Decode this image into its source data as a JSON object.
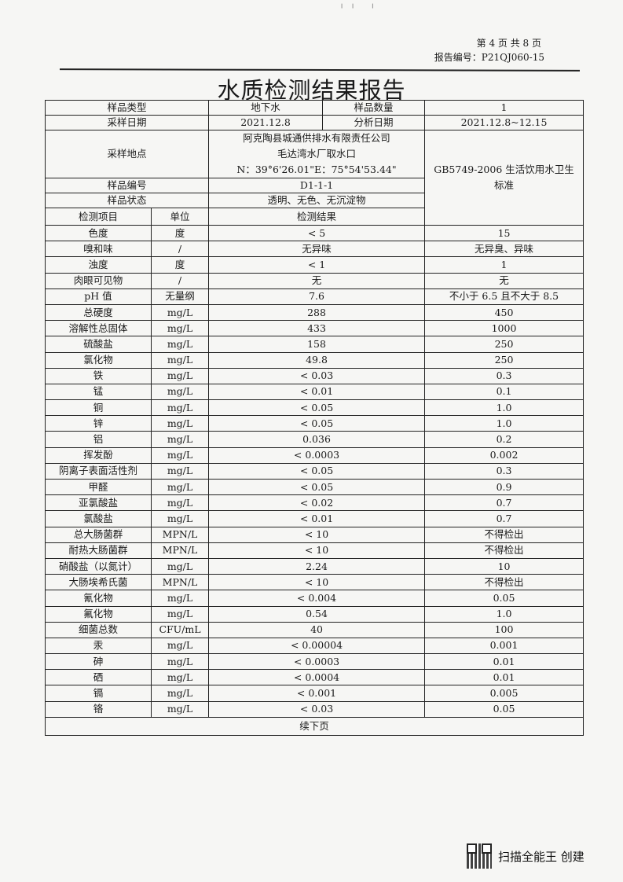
{
  "header": {
    "page_indicator": "第 4 页 共 8 页",
    "report_number": "报告编号：P21QJ060-15",
    "title": "水质检测结果报告"
  },
  "info": {
    "sample_type_label": "样品类型",
    "sample_type": "地下水",
    "sample_count_label": "样品数量",
    "sample_count": "1",
    "sampling_date_label": "采样日期",
    "sampling_date": "2021.12.8",
    "analysis_date_label": "分析日期",
    "analysis_date": "2021.12.8~12.15",
    "location_label": "采样地点",
    "location_lines": [
      "阿克陶县城通供排水有限责任公司",
      "毛达湾水厂取水口",
      "N：39°6'26.01\"E：75°54'53.44\""
    ],
    "sample_id_label": "样品编号",
    "sample_id": "D1-1-1",
    "sample_state_label": "样品状态",
    "sample_state": "透明、无色、无沉淀物",
    "standard": "GB5749-2006 生活饮用水卫生标准"
  },
  "columns": {
    "item": "检测项目",
    "unit": "单位",
    "result": "检测结果"
  },
  "rows": [
    {
      "item": "色度",
      "unit": "度",
      "result": "< 5",
      "limit": "15"
    },
    {
      "item": "嗅和味",
      "unit": "/",
      "result": "无异味",
      "limit": "无异臭、异味"
    },
    {
      "item": "浊度",
      "unit": "度",
      "result": "< 1",
      "limit": "1"
    },
    {
      "item": "肉眼可见物",
      "unit": "/",
      "result": "无",
      "limit": "无"
    },
    {
      "item": "pH 值",
      "unit": "无量纲",
      "result": "7.6",
      "limit": "不小于 6.5 且不大于 8.5"
    },
    {
      "item": "总硬度",
      "unit": "mg/L",
      "result": "288",
      "limit": "450"
    },
    {
      "item": "溶解性总固体",
      "unit": "mg/L",
      "result": "433",
      "limit": "1000"
    },
    {
      "item": "硫酸盐",
      "unit": "mg/L",
      "result": "158",
      "limit": "250"
    },
    {
      "item": "氯化物",
      "unit": "mg/L",
      "result": "49.8",
      "limit": "250"
    },
    {
      "item": "铁",
      "unit": "mg/L",
      "result": "< 0.03",
      "limit": "0.3"
    },
    {
      "item": "锰",
      "unit": "mg/L",
      "result": "< 0.01",
      "limit": "0.1"
    },
    {
      "item": "铜",
      "unit": "mg/L",
      "result": "< 0.05",
      "limit": "1.0"
    },
    {
      "item": "锌",
      "unit": "mg/L",
      "result": "< 0.05",
      "limit": "1.0"
    },
    {
      "item": "铝",
      "unit": "mg/L",
      "result": "0.036",
      "limit": "0.2"
    },
    {
      "item": "挥发酚",
      "unit": "mg/L",
      "result": "< 0.0003",
      "limit": "0.002"
    },
    {
      "item": "阴离子表面活性剂",
      "unit": "mg/L",
      "result": "< 0.05",
      "limit": "0.3"
    },
    {
      "item": "甲醛",
      "unit": "mg/L",
      "result": "< 0.05",
      "limit": "0.9"
    },
    {
      "item": "亚氯酸盐",
      "unit": "mg/L",
      "result": "< 0.02",
      "limit": "0.7"
    },
    {
      "item": "氯酸盐",
      "unit": "mg/L",
      "result": "< 0.01",
      "limit": "0.7"
    },
    {
      "item": "总大肠菌群",
      "unit": "MPN/L",
      "result": "< 10",
      "limit": "不得检出"
    },
    {
      "item": "耐热大肠菌群",
      "unit": "MPN/L",
      "result": "< 10",
      "limit": "不得检出"
    },
    {
      "item": "硝酸盐（以氮计）",
      "unit": "mg/L",
      "result": "2.24",
      "limit": "10"
    },
    {
      "item": "大肠埃希氏菌",
      "unit": "MPN/L",
      "result": "< 10",
      "limit": "不得检出"
    },
    {
      "item": "氰化物",
      "unit": "mg/L",
      "result": "< 0.004",
      "limit": "0.05"
    },
    {
      "item": "氟化物",
      "unit": "mg/L",
      "result": "0.54",
      "limit": "1.0"
    },
    {
      "item": "细菌总数",
      "unit": "CFU/mL",
      "result": "40",
      "limit": "100"
    },
    {
      "item": "汞",
      "unit": "mg/L",
      "result": "< 0.00004",
      "limit": "0.001"
    },
    {
      "item": "砷",
      "unit": "mg/L",
      "result": "< 0.0003",
      "limit": "0.01"
    },
    {
      "item": "硒",
      "unit": "mg/L",
      "result": "< 0.0004",
      "limit": "0.01"
    },
    {
      "item": "镉",
      "unit": "mg/L",
      "result": "< 0.001",
      "limit": "0.005"
    },
    {
      "item": "铬",
      "unit": "mg/L",
      "result": "< 0.03",
      "limit": "0.05"
    }
  ],
  "footer": {
    "continued": "续下页"
  },
  "watermark": {
    "text": "扫描全能王 创建"
  }
}
